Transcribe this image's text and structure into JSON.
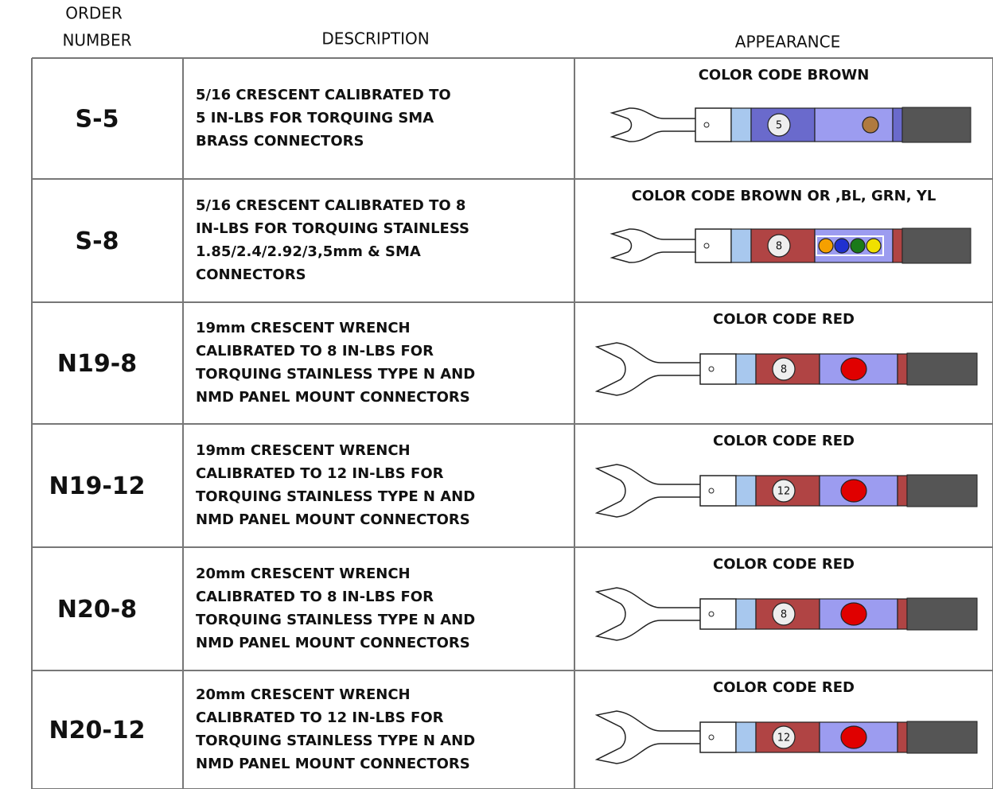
{
  "header": {
    "order_number": [
      "ORDER",
      "NUMBER"
    ],
    "description": "DESCRIPTION",
    "appearance": "APPEARANCE"
  },
  "rows": [
    {
      "order": "S-5",
      "description": [
        "5/16 CRESCENT CALIBRATED TO",
        "5 IN-LBS FOR TORQUING SMA",
        "BRASS CONNECTORS"
      ],
      "color_code": "COLOR CODE BROWN",
      "badge": "5"
    },
    {
      "order": "S-8",
      "description": [
        "5/16 CRESCENT CALIBRATED TO 8",
        "IN-LBS FOR TORQUING STAINLESS",
        "1.85/2.4/2.92/3,5mm & SMA",
        "CONNECTORS"
      ],
      "color_code": "COLOR CODE BROWN OR ,BL, GRN, YL",
      "badge": "8"
    },
    {
      "order": "N19-8",
      "description": [
        "19mm CRESCENT WRENCH",
        "CALIBRATED TO 8 IN-LBS FOR",
        "TORQUING STAINLESS TYPE N AND",
        "NMD PANEL MOUNT CONNECTORS"
      ],
      "color_code": "COLOR CODE RED",
      "badge": "8"
    },
    {
      "order": "N19-12",
      "description": [
        "19mm CRESCENT WRENCH",
        "CALIBRATED TO 12 IN-LBS FOR",
        "TORQUING STAINLESS TYPE N AND",
        "NMD PANEL MOUNT CONNECTORS"
      ],
      "color_code": "COLOR CODE RED",
      "badge": "12"
    },
    {
      "order": "N20-8",
      "description": [
        "20mm CRESCENT WRENCH",
        "CALIBRATED TO 8 IN-LBS FOR",
        "TORQUING STAINLESS TYPE N AND",
        "NMD PANEL MOUNT CONNECTORS"
      ],
      "color_code": "COLOR CODE RED",
      "badge": "8"
    },
    {
      "order": "N20-12",
      "description": [
        "20mm CRESCENT WRENCH",
        "CALIBRATED TO 12 IN-LBS FOR",
        "TORQUING STAINLESS TYPE N AND",
        "NMD PANEL MOUNT CONNECTORS"
      ],
      "color_code": "COLOR CODE RED",
      "badge": "12"
    }
  ]
}
